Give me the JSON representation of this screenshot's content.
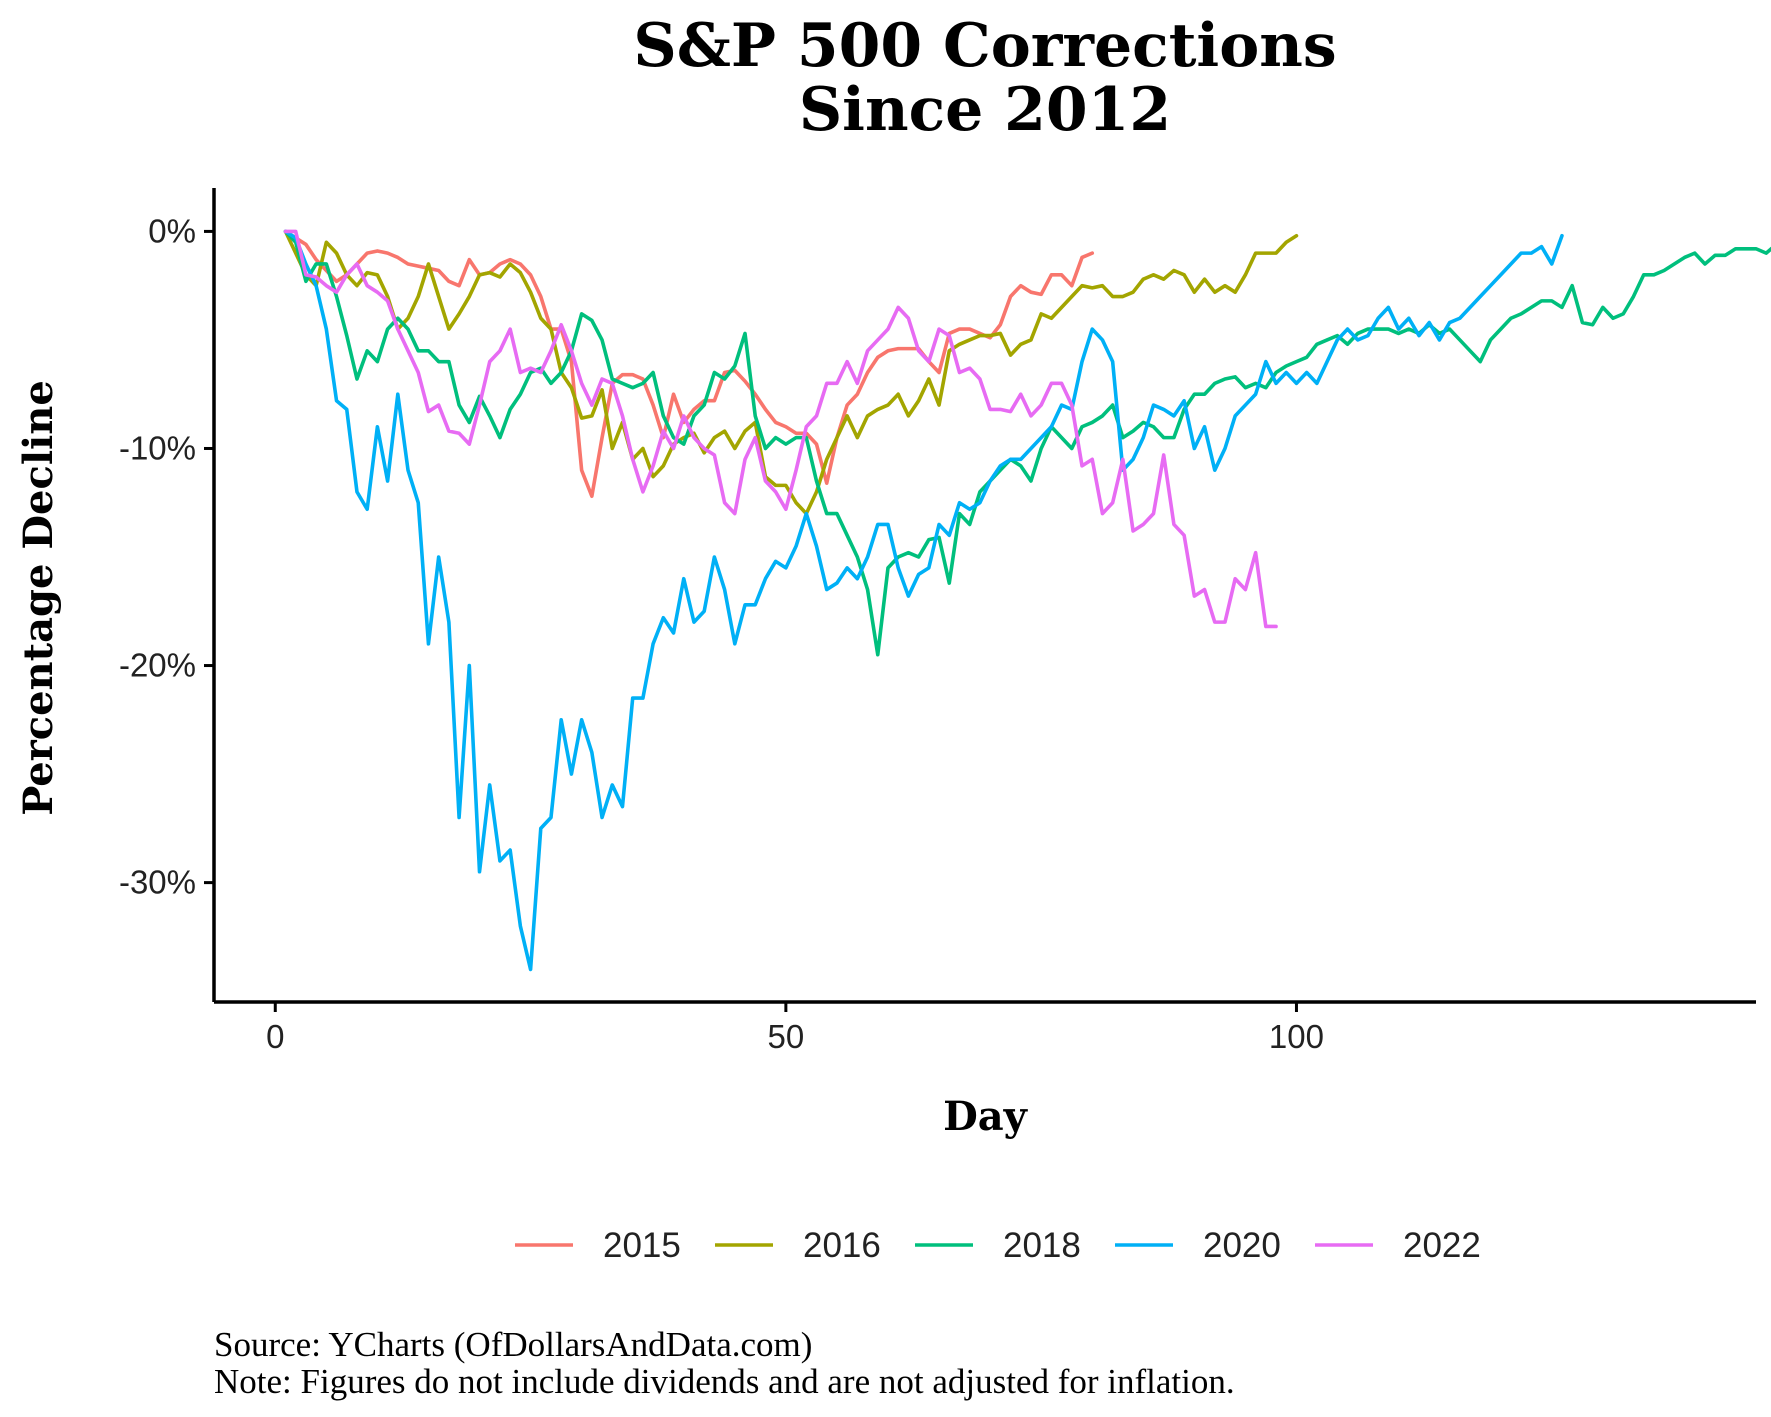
{
  "chart_data": {
    "type": "line",
    "title": [
      "S&P 500 Corrections",
      "Since 2012"
    ],
    "xlabel": "Day",
    "ylabel": "Percentage Decline",
    "xlim": [
      -6,
      145
    ],
    "ylim": [
      -35.5,
      2
    ],
    "xticks": [
      0,
      50,
      100
    ],
    "xtick_labels": [
      "0",
      "50",
      "100"
    ],
    "yticks": [
      0,
      -10,
      -20,
      -30
    ],
    "ytick_labels": [
      "0%",
      "-10%",
      "-20%",
      "-30%"
    ],
    "grid": false,
    "legend_position": "bottom",
    "series": [
      {
        "name": "2015",
        "color": "#F8766D",
        "y": [
          0,
          -0.3,
          -0.6,
          -1.3,
          -1.8,
          -2.3,
          -2.0,
          -1.5,
          -1.0,
          -0.9,
          -1.0,
          -1.2,
          -1.5,
          -1.6,
          -1.7,
          -1.8,
          -2.3,
          -2.5,
          -1.3,
          -2.0,
          -1.9,
          -1.5,
          -1.3,
          -1.5,
          -2.0,
          -3.0,
          -4.5,
          -4.5,
          -6.0,
          -11.0,
          -12.2,
          -9.5,
          -7.0,
          -6.6,
          -6.6,
          -6.8,
          -8.0,
          -9.5,
          -7.5,
          -8.8,
          -8.2,
          -7.8,
          -7.8,
          -6.5,
          -6.4,
          -6.9,
          -7.5,
          -8.2,
          -8.8,
          -9.0,
          -9.3,
          -9.3,
          -9.8,
          -11.6,
          -9.5,
          -8.0,
          -7.5,
          -6.5,
          -5.8,
          -5.5,
          -5.4,
          -5.4,
          -5.4,
          -6.0,
          -6.5,
          -4.7,
          -4.5,
          -4.5,
          -4.7,
          -4.9,
          -4.3,
          -3.0,
          -2.5,
          -2.8,
          -2.9,
          -2.0,
          -2.0,
          -2.5,
          -1.2,
          -1.0
        ]
      },
      {
        "name": "2016",
        "color": "#A3A500",
        "y": [
          0,
          -1.0,
          -2.0,
          -2.5,
          -0.5,
          -1.0,
          -2.0,
          -2.5,
          -1.9,
          -2.0,
          -3.0,
          -4.5,
          -4.0,
          -3.0,
          -1.5,
          -3.0,
          -4.5,
          -3.8,
          -3.0,
          -2.0,
          -1.9,
          -2.1,
          -1.5,
          -1.9,
          -2.8,
          -4.0,
          -4.5,
          -6.5,
          -7.2,
          -8.6,
          -8.5,
          -7.3,
          -10.0,
          -8.8,
          -10.5,
          -10.0,
          -11.3,
          -10.8,
          -9.8,
          -9.5,
          -9.3,
          -10.2,
          -9.5,
          -9.2,
          -10.0,
          -9.2,
          -8.8,
          -11.3,
          -11.7,
          -11.7,
          -12.5,
          -13.0,
          -12.0,
          -10.5,
          -9.5,
          -8.5,
          -9.5,
          -8.5,
          -8.2,
          -8.0,
          -7.5,
          -8.5,
          -7.8,
          -6.8,
          -8.0,
          -5.5,
          -5.2,
          -5.0,
          -4.8,
          -4.8,
          -4.7,
          -5.7,
          -5.2,
          -5.0,
          -3.8,
          -4.0,
          -3.5,
          -3.0,
          -2.5,
          -2.6,
          -2.5,
          -3.0,
          -3.0,
          -2.8,
          -2.2,
          -2.0,
          -2.2,
          -1.8,
          -2.0,
          -2.8,
          -2.2,
          -2.8,
          -2.5,
          -2.8,
          -2.0,
          -1.0,
          -1.0,
          -1.0,
          -0.5,
          -0.2
        ]
      },
      {
        "name": "2018",
        "color": "#00BF7D",
        "y": [
          0,
          -0.5,
          -2.3,
          -1.5,
          -1.5,
          -3.0,
          -4.8,
          -6.8,
          -5.5,
          -6.0,
          -4.5,
          -4.0,
          -4.5,
          -5.5,
          -5.5,
          -6.0,
          -6.0,
          -8.0,
          -8.8,
          -7.6,
          -8.5,
          -9.5,
          -8.2,
          -7.5,
          -6.5,
          -6.3,
          -7.0,
          -6.5,
          -5.5,
          -3.8,
          -4.1,
          -5.0,
          -6.8,
          -7.0,
          -7.2,
          -7.0,
          -6.5,
          -8.5,
          -9.5,
          -9.8,
          -8.5,
          -8.0,
          -6.5,
          -6.8,
          -6.2,
          -4.7,
          -8.5,
          -10.0,
          -9.5,
          -9.8,
          -9.5,
          -9.5,
          -11.5,
          -13.0,
          -13.0,
          -14.0,
          -15.0,
          -16.5,
          -19.5,
          -15.5,
          -15.0,
          -14.8,
          -15.0,
          -14.2,
          -14.1,
          -16.2,
          -13.0,
          -13.5,
          -12.0,
          -11.5,
          -11.0,
          -10.5,
          -10.8,
          -11.5,
          -10.0,
          -9.0,
          -9.5,
          -10.0,
          -9.0,
          -8.8,
          -8.5,
          -8.0,
          -9.5,
          -9.2,
          -8.8,
          -9.0,
          -9.5,
          -9.5,
          -8.2,
          -7.5,
          -7.5,
          -7.0,
          -6.8,
          -6.7,
          -7.2,
          -7.0,
          -7.2,
          -6.5,
          -6.2,
          -6.0,
          -5.8,
          -5.2,
          -5.0,
          -4.8,
          -5.2,
          -4.7,
          -4.5,
          -4.5,
          -4.5,
          -4.7,
          -4.5,
          -4.7,
          -4.3,
          -4.7,
          -4.5,
          -5.0,
          -5.5,
          -6.0,
          -5.0,
          -4.5,
          -4.0,
          -3.8,
          -3.5,
          -3.2,
          -3.2,
          -3.5,
          -2.5,
          -4.2,
          -4.3,
          -3.5,
          -4.0,
          -3.8,
          -3.0,
          -2.0,
          -2.0,
          -1.8,
          -1.5,
          -1.2,
          -1.0,
          -1.5,
          -1.1,
          -1.1,
          -0.8,
          -0.8,
          -0.8,
          -1.0,
          -0.6,
          -0.5,
          0.2
        ]
      },
      {
        "name": "2020",
        "color": "#00B0F6",
        "y": [
          0,
          -0.3,
          -1.5,
          -2.5,
          -4.5,
          -7.8,
          -8.2,
          -12.0,
          -12.8,
          -9.0,
          -11.5,
          -7.5,
          -11.0,
          -12.5,
          -19.0,
          -15.0,
          -18.0,
          -27.0,
          -20.0,
          -29.5,
          -25.5,
          -29.0,
          -28.5,
          -32.0,
          -34.0,
          -27.5,
          -27.0,
          -22.5,
          -25.0,
          -22.5,
          -24.0,
          -27.0,
          -25.5,
          -26.5,
          -21.5,
          -21.5,
          -19.0,
          -17.8,
          -18.5,
          -16.0,
          -18.0,
          -17.5,
          -15.0,
          -16.5,
          -19.0,
          -17.2,
          -17.2,
          -16.0,
          -15.2,
          -15.5,
          -14.5,
          -13.0,
          -14.5,
          -16.5,
          -16.2,
          -15.5,
          -16.0,
          -15.0,
          -13.5,
          -13.5,
          -15.5,
          -16.8,
          -15.8,
          -15.5,
          -13.5,
          -14.0,
          -12.5,
          -12.8,
          -12.5,
          -11.5,
          -10.8,
          -10.5,
          -10.5,
          -10.0,
          -9.5,
          -9.0,
          -8.0,
          -8.2,
          -6.0,
          -4.5,
          -5.0,
          -6.0,
          -11.0,
          -10.5,
          -9.5,
          -8.0,
          -8.2,
          -8.5,
          -7.8,
          -10.0,
          -9.0,
          -11.0,
          -10.0,
          -8.5,
          -8.0,
          -7.5,
          -6.0,
          -7.0,
          -6.5,
          -7.0,
          -6.5,
          -7.0,
          -6.0,
          -5.0,
          -4.5,
          -5.0,
          -4.8,
          -4.0,
          -3.5,
          -4.5,
          -4.0,
          -4.8,
          -4.2,
          -5.0,
          -4.2,
          -4.0,
          -3.5,
          -3.0,
          -2.5,
          -2.0,
          -1.5,
          -1.0,
          -1.0,
          -0.7,
          -1.5,
          -0.2
        ]
      },
      {
        "name": "2022",
        "color": "#E76BF3",
        "y": [
          0,
          0,
          -2.0,
          -2.1,
          -2.5,
          -2.8,
          -2.0,
          -1.5,
          -2.5,
          -2.8,
          -3.2,
          -4.5,
          -5.5,
          -6.5,
          -8.3,
          -8.0,
          -9.2,
          -9.3,
          -9.8,
          -8.0,
          -6.0,
          -5.5,
          -4.5,
          -6.5,
          -6.3,
          -6.5,
          -5.5,
          -4.3,
          -5.5,
          -7.0,
          -8.0,
          -6.8,
          -7.0,
          -8.5,
          -10.5,
          -12.0,
          -10.8,
          -9.2,
          -10.0,
          -8.5,
          -9.5,
          -10.0,
          -10.3,
          -12.5,
          -13.0,
          -10.5,
          -9.5,
          -11.5,
          -12.0,
          -12.8,
          -11.0,
          -9.0,
          -8.5,
          -7.0,
          -7.0,
          -6.0,
          -7.0,
          -5.5,
          -5.0,
          -4.5,
          -3.5,
          -4.0,
          -5.5,
          -6.0,
          -4.5,
          -4.8,
          -6.5,
          -6.3,
          -6.8,
          -8.2,
          -8.2,
          -8.3,
          -7.5,
          -8.5,
          -8.0,
          -7.0,
          -7.0,
          -8.0,
          -10.8,
          -10.5,
          -13.0,
          -12.5,
          -10.5,
          -13.8,
          -13.5,
          -13.0,
          -10.3,
          -13.5,
          -14.0,
          -16.8,
          -16.5,
          -18.0,
          -18.0,
          -16.0,
          -16.5,
          -14.8,
          -18.2,
          -18.2
        ]
      }
    ]
  },
  "caption": {
    "source": "Source: YCharts (OfDollarsAndData.com)",
    "note": "Note: Figures do not include dividends and are not adjusted for inflation."
  }
}
